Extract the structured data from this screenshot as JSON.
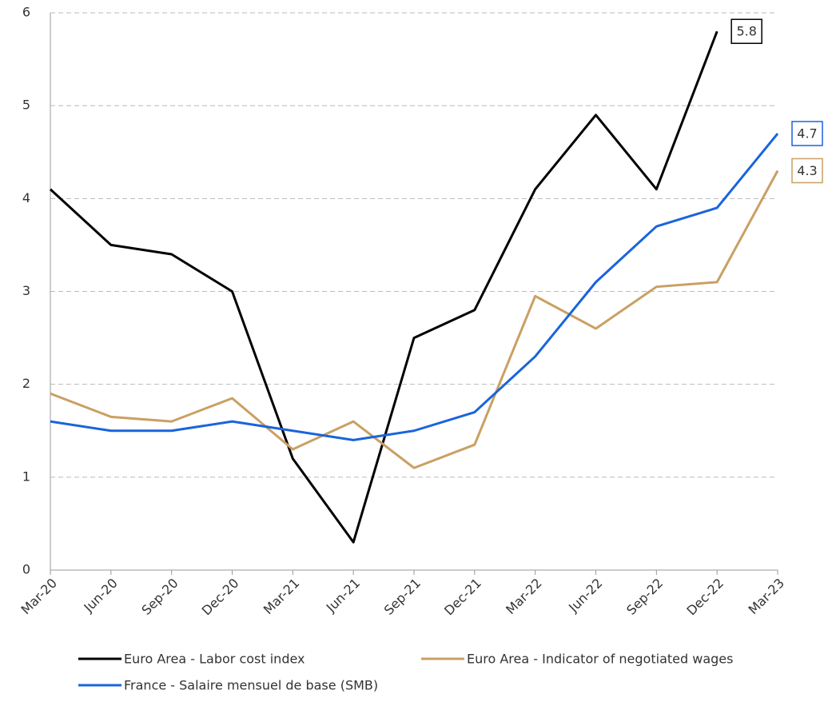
{
  "chart_data": {
    "type": "line",
    "categories": [
      "Mar-20",
      "Jun-20",
      "Sep-20",
      "Dec-20",
      "Mar-21",
      "Jun-21",
      "Sep-21",
      "Dec-21",
      "Mar-22",
      "Jun-22",
      "Sep-22",
      "Dec-22",
      "Mar-23"
    ],
    "series": [
      {
        "name": "Euro Area - Labor cost index",
        "color": "#000000",
        "values": [
          4.1,
          3.5,
          3.4,
          3.0,
          1.2,
          0.3,
          2.5,
          2.8,
          4.1,
          4.9,
          4.1,
          5.8,
          null
        ]
      },
      {
        "name": "Euro Area - Indicator of negotiated wages",
        "color": "#c9a063",
        "values": [
          1.9,
          1.65,
          1.6,
          1.85,
          1.3,
          1.6,
          1.1,
          1.35,
          2.95,
          2.6,
          3.05,
          3.1,
          4.3
        ]
      },
      {
        "name": "France - Salaire mensuel de base (SMB)",
        "color": "#1a64dc",
        "values": [
          1.6,
          1.5,
          1.5,
          1.6,
          1.5,
          1.4,
          1.5,
          1.7,
          2.3,
          3.1,
          3.7,
          3.9,
          4.7
        ]
      }
    ],
    "ylim": [
      0,
      6
    ],
    "yticks": [
      0,
      1,
      2,
      3,
      4,
      5,
      6
    ],
    "grid": true,
    "legend": "bottom",
    "data_labels": "last"
  }
}
